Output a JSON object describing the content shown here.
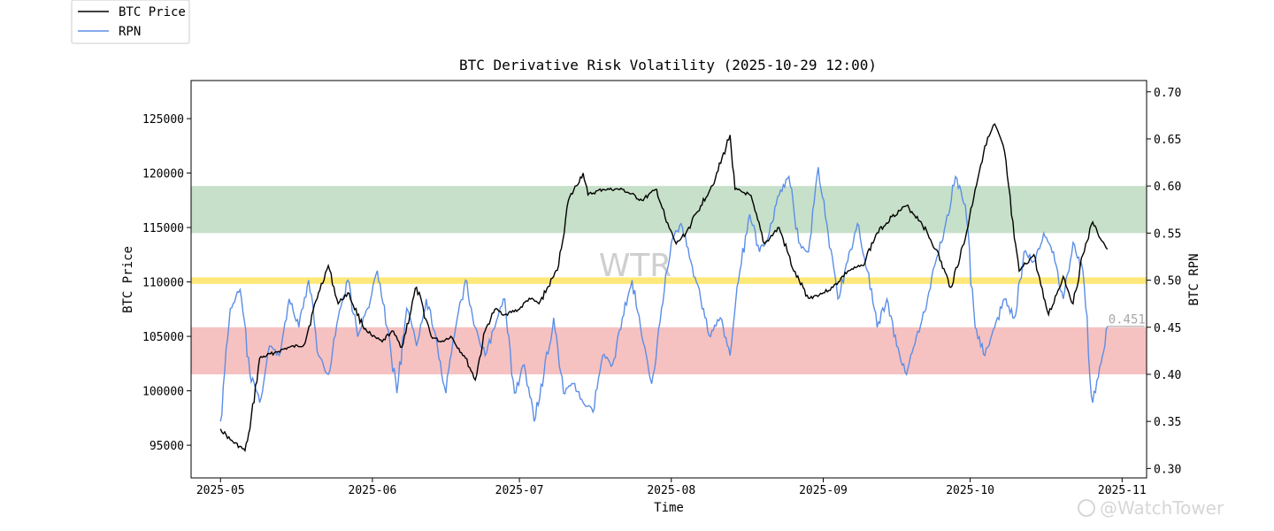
{
  "chart_data": {
    "type": "line",
    "title": "BTC Derivative Risk Volatility (2025-10-29 12:00)",
    "xlabel": "Time",
    "ylabel_left": "BTC Price",
    "ylabel_right": "BTC RPN",
    "x_ticks": [
      "2025-05",
      "2025-06",
      "2025-07",
      "2025-08",
      "2025-09",
      "2025-10",
      "2025-11"
    ],
    "x_range": [
      "2025-04-25",
      "2025-11-06"
    ],
    "y_left": {
      "range": [
        92000,
        128500
      ],
      "ticks": [
        95000,
        100000,
        105000,
        110000,
        115000,
        120000,
        125000
      ]
    },
    "y_right": {
      "range": [
        0.29,
        0.712
      ],
      "ticks": [
        "0.30",
        "0.35",
        "0.40",
        "0.45",
        "0.50",
        "0.55",
        "0.60",
        "0.65",
        "0.70"
      ]
    },
    "bands": [
      {
        "name": "green",
        "from": 0.55,
        "to": 0.6,
        "color": "#c7e0c9"
      },
      {
        "name": "yellow",
        "from": 0.496,
        "to": 0.503,
        "color": "#fde879"
      },
      {
        "name": "red",
        "from": 0.4,
        "to": 0.45,
        "color": "#f6c1c1"
      }
    ],
    "legend": {
      "placement": "upper-left-outside",
      "entries": [
        "BTC Price",
        "RPN"
      ]
    },
    "last_value_label": "0.451",
    "series": [
      {
        "name": "BTC Price",
        "axis": "left",
        "color": "#000000",
        "x": [
          "2025-05-01",
          "2025-05-03",
          "2025-05-06",
          "2025-05-07",
          "2025-05-09",
          "2025-05-12",
          "2025-05-15",
          "2025-05-18",
          "2025-05-21",
          "2025-05-23",
          "2025-05-25",
          "2025-05-27",
          "2025-05-30",
          "2025-06-01",
          "2025-06-03",
          "2025-06-05",
          "2025-06-07",
          "2025-06-10",
          "2025-06-13",
          "2025-06-15",
          "2025-06-17",
          "2025-06-20",
          "2025-06-22",
          "2025-06-24",
          "2025-06-26",
          "2025-06-28",
          "2025-07-01",
          "2025-07-03",
          "2025-07-05",
          "2025-07-08",
          "2025-07-09",
          "2025-07-11",
          "2025-07-14",
          "2025-07-15",
          "2025-07-18",
          "2025-07-22",
          "2025-07-26",
          "2025-07-29",
          "2025-07-31",
          "2025-08-02",
          "2025-08-04",
          "2025-08-07",
          "2025-08-10",
          "2025-08-13",
          "2025-08-14",
          "2025-08-17",
          "2025-08-20",
          "2025-08-23",
          "2025-08-26",
          "2025-08-29",
          "2025-09-01",
          "2025-09-03",
          "2025-09-06",
          "2025-09-09",
          "2025-09-12",
          "2025-09-15",
          "2025-09-18",
          "2025-09-21",
          "2025-09-24",
          "2025-09-27",
          "2025-09-30",
          "2025-10-02",
          "2025-10-04",
          "2025-10-06",
          "2025-10-08",
          "2025-10-10",
          "2025-10-11",
          "2025-10-14",
          "2025-10-16",
          "2025-10-17",
          "2025-10-20",
          "2025-10-22",
          "2025-10-24",
          "2025-10-26",
          "2025-10-27",
          "2025-10-29"
        ],
        "values": [
          96500,
          95500,
          94500,
          96500,
          103000,
          103500,
          104000,
          104200,
          109000,
          111500,
          108000,
          109000,
          106000,
          105000,
          104500,
          105500,
          104000,
          109500,
          105000,
          104500,
          105000,
          103000,
          101000,
          105500,
          107500,
          107000,
          107500,
          108500,
          108000,
          110500,
          111500,
          117500,
          120000,
          118000,
          118500,
          118500,
          117500,
          118500,
          115500,
          113500,
          114500,
          117000,
          119500,
          123500,
          118500,
          118000,
          113500,
          115000,
          111000,
          108500,
          109000,
          109500,
          111000,
          111500,
          114500,
          116000,
          117000,
          115500,
          113000,
          109500,
          114000,
          118500,
          122500,
          124500,
          122000,
          114000,
          111000,
          112500,
          108500,
          107000,
          110500,
          108000,
          112500,
          115500,
          114500,
          113000
        ]
      },
      {
        "name": "RPN",
        "axis": "right",
        "color": "#5b8ee6",
        "x": [
          "2025-05-01",
          "2025-05-03",
          "2025-05-05",
          "2025-05-07",
          "2025-05-09",
          "2025-05-11",
          "2025-05-13",
          "2025-05-15",
          "2025-05-17",
          "2025-05-19",
          "2025-05-21",
          "2025-05-23",
          "2025-05-25",
          "2025-05-27",
          "2025-05-29",
          "2025-05-31",
          "2025-06-02",
          "2025-06-04",
          "2025-06-06",
          "2025-06-08",
          "2025-06-10",
          "2025-06-12",
          "2025-06-14",
          "2025-06-16",
          "2025-06-18",
          "2025-06-20",
          "2025-06-22",
          "2025-06-24",
          "2025-06-26",
          "2025-06-28",
          "2025-06-30",
          "2025-07-02",
          "2025-07-04",
          "2025-07-06",
          "2025-07-08",
          "2025-07-10",
          "2025-07-12",
          "2025-07-14",
          "2025-07-16",
          "2025-07-18",
          "2025-07-20",
          "2025-07-22",
          "2025-07-24",
          "2025-07-26",
          "2025-07-28",
          "2025-07-30",
          "2025-08-01",
          "2025-08-03",
          "2025-08-05",
          "2025-08-07",
          "2025-08-09",
          "2025-08-11",
          "2025-08-13",
          "2025-08-15",
          "2025-08-17",
          "2025-08-19",
          "2025-08-21",
          "2025-08-23",
          "2025-08-25",
          "2025-08-27",
          "2025-08-29",
          "2025-08-31",
          "2025-09-02",
          "2025-09-04",
          "2025-09-06",
          "2025-09-08",
          "2025-09-10",
          "2025-09-12",
          "2025-09-14",
          "2025-09-16",
          "2025-09-18",
          "2025-09-20",
          "2025-09-22",
          "2025-09-24",
          "2025-09-26",
          "2025-09-28",
          "2025-09-30",
          "2025-10-02",
          "2025-10-04",
          "2025-10-06",
          "2025-10-08",
          "2025-10-10",
          "2025-10-12",
          "2025-10-14",
          "2025-10-16",
          "2025-10-18",
          "2025-10-20",
          "2025-10-22",
          "2025-10-24",
          "2025-10-26",
          "2025-10-28",
          "2025-10-29"
        ],
        "values": [
          0.35,
          0.47,
          0.49,
          0.4,
          0.37,
          0.43,
          0.42,
          0.48,
          0.45,
          0.5,
          0.42,
          0.4,
          0.46,
          0.5,
          0.44,
          0.47,
          0.51,
          0.45,
          0.38,
          0.47,
          0.43,
          0.48,
          0.44,
          0.38,
          0.45,
          0.5,
          0.45,
          0.42,
          0.45,
          0.48,
          0.38,
          0.41,
          0.35,
          0.4,
          0.46,
          0.38,
          0.39,
          0.37,
          0.36,
          0.42,
          0.41,
          0.46,
          0.5,
          0.44,
          0.39,
          0.47,
          0.54,
          0.56,
          0.52,
          0.48,
          0.44,
          0.46,
          0.42,
          0.51,
          0.57,
          0.53,
          0.55,
          0.59,
          0.61,
          0.54,
          0.53,
          0.62,
          0.55,
          0.48,
          0.52,
          0.56,
          0.51,
          0.45,
          0.48,
          0.43,
          0.4,
          0.44,
          0.47,
          0.52,
          0.56,
          0.61,
          0.58,
          0.45,
          0.42,
          0.45,
          0.48,
          0.46,
          0.53,
          0.52,
          0.55,
          0.53,
          0.48,
          0.54,
          0.51,
          0.37,
          0.42,
          0.451
        ]
      }
    ]
  },
  "watermarks": {
    "center": "WTR",
    "corner": "@WatchTower"
  }
}
